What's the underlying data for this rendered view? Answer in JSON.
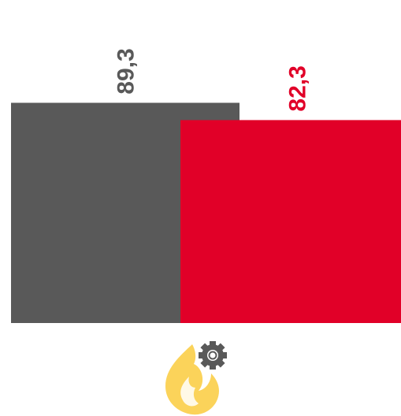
{
  "chart_data": {
    "type": "bar",
    "categories": [
      "",
      ""
    ],
    "values": [
      89.3,
      82.3
    ],
    "value_labels": [
      "89,3",
      "82,3"
    ],
    "colors": [
      "#595959",
      "#e10028"
    ],
    "label_rotation": "vertical",
    "grid": false,
    "legend": "none",
    "ylim": [
      0,
      100
    ]
  },
  "footer": {
    "icon": "flame-gear-icon",
    "flame_color": "#fbd35a",
    "gear_color": "#595959"
  }
}
